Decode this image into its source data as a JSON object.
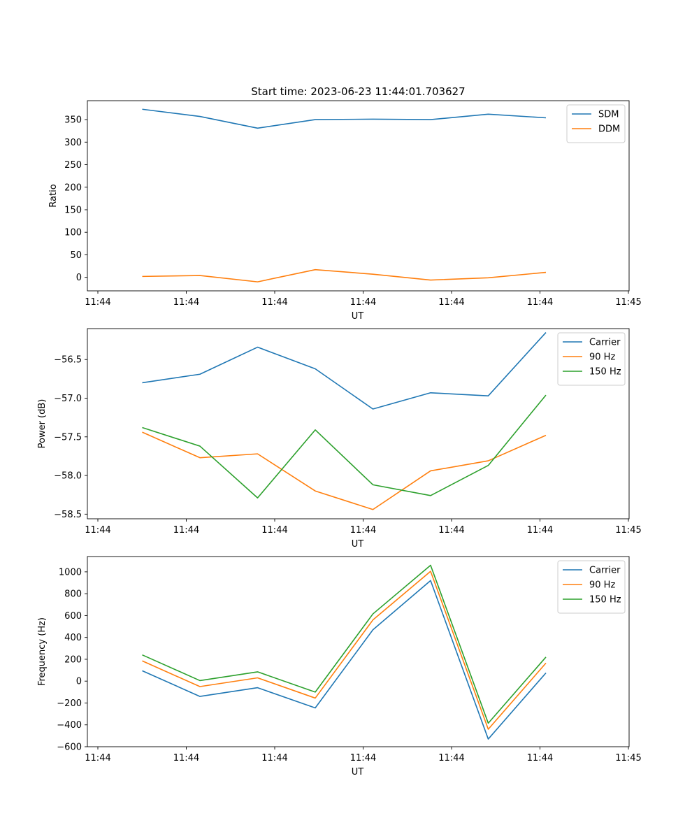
{
  "figure_title": "Start time: 2023-06-23 11:44:01.703627",
  "colors": {
    "blue": "#1f77b4",
    "orange": "#ff7f0e",
    "green": "#2ca02c"
  },
  "chart_data": [
    {
      "type": "line",
      "title": "Start time: 2023-06-23 11:44:01.703627",
      "xlabel": "UT",
      "ylabel": "Ratio",
      "x_tick_labels": [
        "11:44",
        "11:44",
        "11:44",
        "11:44",
        "11:44",
        "11:44",
        "11:45"
      ],
      "ylim": [
        -30,
        392
      ],
      "yticks": [
        0,
        50,
        100,
        150,
        200,
        250,
        300,
        350
      ],
      "legend": "top-right",
      "series": [
        {
          "name": "SDM",
          "color": "#1f77b4",
          "values": [
            373,
            357,
            331,
            350,
            351,
            350,
            362,
            354
          ]
        },
        {
          "name": "DDM",
          "color": "#ff7f0e",
          "values": [
            2,
            4,
            -10,
            17,
            7,
            -6,
            -1,
            11
          ]
        }
      ]
    },
    {
      "type": "line",
      "xlabel": "UT",
      "ylabel": "Power (dB)",
      "x_tick_labels": [
        "11:44",
        "11:44",
        "11:44",
        "11:44",
        "11:44",
        "11:44",
        "11:45"
      ],
      "ylim": [
        -58.56,
        -56.1
      ],
      "yticks": [
        -58.5,
        -58.0,
        -57.5,
        -57.0,
        -56.5
      ],
      "ytick_labels": [
        "−58.5",
        "−58.0",
        "−57.5",
        "−57.0",
        "−56.5"
      ],
      "legend": "top-right",
      "series": [
        {
          "name": "Carrier",
          "color": "#1f77b4",
          "values": [
            -56.8,
            -56.69,
            -56.34,
            -56.62,
            -57.14,
            -56.93,
            -56.97,
            -56.15
          ]
        },
        {
          "name": "90 Hz",
          "color": "#ff7f0e",
          "values": [
            -57.44,
            -57.77,
            -57.72,
            -58.2,
            -58.44,
            -57.94,
            -57.81,
            -57.48
          ]
        },
        {
          "name": "150 Hz",
          "color": "#2ca02c",
          "values": [
            -57.38,
            -57.62,
            -58.29,
            -57.41,
            -58.12,
            -58.26,
            -57.87,
            -56.96
          ]
        }
      ]
    },
    {
      "type": "line",
      "xlabel": "UT",
      "ylabel": "Frequency (Hz)",
      "x_tick_labels": [
        "11:44",
        "11:44",
        "11:44",
        "11:44",
        "11:44",
        "11:44",
        "11:45"
      ],
      "ylim": [
        -600,
        1140
      ],
      "yticks": [
        -600,
        -400,
        -200,
        0,
        200,
        400,
        600,
        800,
        1000
      ],
      "ytick_labels": [
        "−600",
        "−400",
        "−200",
        "0",
        "200",
        "400",
        "600",
        "800",
        "1000"
      ],
      "legend": "top-right",
      "series": [
        {
          "name": "Carrier",
          "color": "#1f77b4",
          "values": [
            95,
            -140,
            -60,
            -245,
            470,
            920,
            -530,
            75
          ]
        },
        {
          "name": "90 Hz",
          "color": "#ff7f0e",
          "values": [
            185,
            -50,
            30,
            -155,
            560,
            1005,
            -440,
            165
          ]
        },
        {
          "name": "150 Hz",
          "color": "#2ca02c",
          "values": [
            240,
            5,
            85,
            -100,
            615,
            1060,
            -385,
            220
          ]
        }
      ]
    }
  ]
}
